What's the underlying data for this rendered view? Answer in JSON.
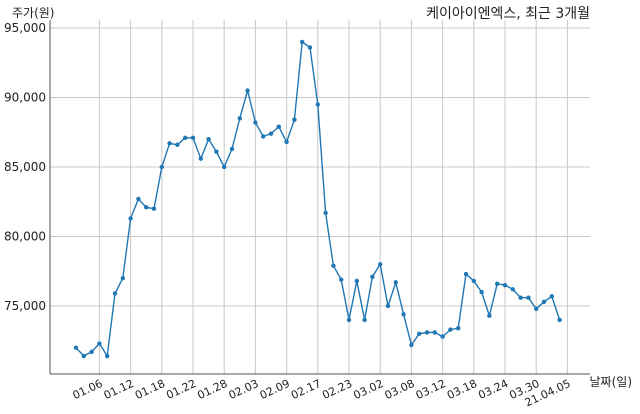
{
  "chart_data": {
    "type": "line",
    "title": "케이아이엔엑스, 최근 3개월",
    "ylabel": "주가(원)",
    "xlabel": "날짜(일)",
    "ylim": [
      70000,
      95000
    ],
    "yticks": [
      75000,
      80000,
      85000,
      90000,
      95000
    ],
    "ytick_labels": [
      "75,000",
      "80,000",
      "85,000",
      "90,000",
      "95,000"
    ],
    "xtick_labels": [
      "01.06",
      "01.12",
      "01.18",
      "01.22",
      "01.28",
      "02.03",
      "02.09",
      "02.17",
      "02.23",
      "03.02",
      "03.08",
      "03.12",
      "03.18",
      "03.24",
      "03.30",
      "21.04.05"
    ],
    "xtick_positions": [
      3,
      7,
      11,
      15,
      19,
      23,
      27,
      31,
      35,
      39,
      43,
      47,
      51,
      55,
      59,
      63
    ],
    "grid": true,
    "series": [
      {
        "color": "#1f77b4",
        "values": [
          72000,
          71400,
          71700,
          72300,
          71400,
          75900,
          77000,
          81300,
          82700,
          82100,
          82000,
          85000,
          86700,
          86600,
          87100,
          87100,
          85600,
          87000,
          86100,
          85000,
          86300,
          88500,
          90500,
          88200,
          87200,
          87400,
          87900,
          86800,
          88400,
          94000,
          93600,
          89500,
          81700,
          77900,
          76900,
          74000,
          76800,
          74000,
          77100,
          78000,
          75000,
          76700,
          74400,
          72200,
          73000,
          73100,
          73100,
          72800,
          73300,
          73400,
          77300,
          76800,
          76000,
          74300,
          76600,
          76500,
          76200,
          75600,
          75600,
          74800,
          75300,
          75700,
          74000
        ]
      }
    ]
  }
}
